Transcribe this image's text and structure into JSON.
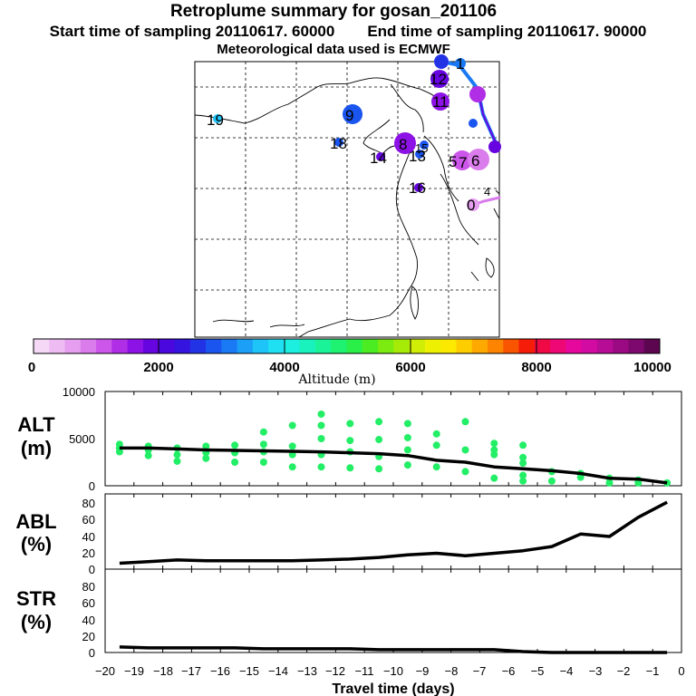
{
  "header": {
    "title": "Retroplume summary for gosan_201106",
    "start_label": "Start time of sampling 20110617. 60000",
    "end_label": "End time of sampling 20110617. 90000",
    "met_label": "Meteorological data used is ECMWF"
  },
  "map": {
    "labels": [
      "19",
      "9",
      "18",
      "14",
      "8",
      "13",
      "15",
      "16",
      "12",
      "11",
      "5",
      "6",
      "7",
      "4",
      "0",
      "1"
    ],
    "colors": {
      "land_line": "#000000",
      "grid": "#000000"
    }
  },
  "colorbar": {
    "title": "Altitude (m)",
    "tick_labels": [
      "0",
      "2000",
      "4000",
      "6000",
      "8000",
      "10000"
    ],
    "colors": [
      "#f4d8f6",
      "#eebcf2",
      "#e59ef0",
      "#da7cec",
      "#cc55ea",
      "#b02ee6",
      "#8d12e6",
      "#6605e0",
      "#4b08de",
      "#3514df",
      "#2233e6",
      "#1b55ef",
      "#1a79f4",
      "#1b9ff7",
      "#1ec3f8",
      "#1fe0f3",
      "#1ceee0",
      "#1af2be",
      "#1bf399",
      "#1ef270",
      "#2aef48",
      "#4cec22",
      "#7beb10",
      "#a6ea08",
      "#cfed05",
      "#eef002",
      "#fbe900",
      "#fdcd00",
      "#fda900",
      "#fc8400",
      "#f95500",
      "#f61c0a",
      "#f00a45",
      "#ee0876",
      "#e6089c",
      "#d20ba2",
      "#b60c96",
      "#9b0a83",
      "#7d086e",
      "#5c0650"
    ]
  },
  "chart_data": [
    {
      "type": "line",
      "panel": "ALT",
      "ylabel": "ALT (m)",
      "ylim": [
        0,
        10000
      ],
      "ytick_labels": [
        "10000",
        "5000",
        "0"
      ],
      "x": [
        -19.5,
        -18.5,
        -17.5,
        -16.5,
        -15.5,
        -14.5,
        -13.5,
        -12.5,
        -11.5,
        -10.5,
        -9.5,
        -8.5,
        -7.5,
        -6.5,
        -5.5,
        -4.5,
        -3.5,
        -2.5,
        -1.5,
        -0.5
      ],
      "values": [
        4000,
        4000,
        3900,
        3800,
        3750,
        3700,
        3650,
        3600,
        3500,
        3400,
        3200,
        2700,
        2500,
        2000,
        1800,
        1600,
        1300,
        800,
        700,
        300
      ],
      "scatter": [
        {
          "x": -19.5,
          "y": 4400
        },
        {
          "x": -19.5,
          "y": 4000
        },
        {
          "x": -19.5,
          "y": 3600
        },
        {
          "x": -18.5,
          "y": 4200
        },
        {
          "x": -18.5,
          "y": 3800
        },
        {
          "x": -18.5,
          "y": 3200
        },
        {
          "x": -17.5,
          "y": 4000
        },
        {
          "x": -17.5,
          "y": 3300
        },
        {
          "x": -17.5,
          "y": 2600
        },
        {
          "x": -16.5,
          "y": 4200
        },
        {
          "x": -16.5,
          "y": 3500
        },
        {
          "x": -16.5,
          "y": 2900
        },
        {
          "x": -15.5,
          "y": 4300
        },
        {
          "x": -15.5,
          "y": 3500
        },
        {
          "x": -15.5,
          "y": 2500
        },
        {
          "x": -14.5,
          "y": 5700
        },
        {
          "x": -14.5,
          "y": 4400
        },
        {
          "x": -14.5,
          "y": 3600
        },
        {
          "x": -14.5,
          "y": 2500
        },
        {
          "x": -13.5,
          "y": 6400
        },
        {
          "x": -13.5,
          "y": 4200
        },
        {
          "x": -13.5,
          "y": 3300
        },
        {
          "x": -13.5,
          "y": 2000
        },
        {
          "x": -12.5,
          "y": 7600
        },
        {
          "x": -12.5,
          "y": 6400
        },
        {
          "x": -12.5,
          "y": 5000
        },
        {
          "x": -12.5,
          "y": 3300
        },
        {
          "x": -12.5,
          "y": 2000
        },
        {
          "x": -11.5,
          "y": 6600
        },
        {
          "x": -11.5,
          "y": 4800
        },
        {
          "x": -11.5,
          "y": 3600
        },
        {
          "x": -11.5,
          "y": 1900
        },
        {
          "x": -10.5,
          "y": 6800
        },
        {
          "x": -10.5,
          "y": 4900
        },
        {
          "x": -10.5,
          "y": 3100
        },
        {
          "x": -10.5,
          "y": 1800
        },
        {
          "x": -9.5,
          "y": 6600
        },
        {
          "x": -9.5,
          "y": 5100
        },
        {
          "x": -9.5,
          "y": 3800
        },
        {
          "x": -9.5,
          "y": 2200
        },
        {
          "x": -8.5,
          "y": 5500
        },
        {
          "x": -8.5,
          "y": 4300
        },
        {
          "x": -8.5,
          "y": 2000
        },
        {
          "x": -7.5,
          "y": 6800
        },
        {
          "x": -7.5,
          "y": 3800
        },
        {
          "x": -7.5,
          "y": 1500
        },
        {
          "x": -6.5,
          "y": 4500
        },
        {
          "x": -6.5,
          "y": 3800
        },
        {
          "x": -6.5,
          "y": 3300
        },
        {
          "x": -6.5,
          "y": 800
        },
        {
          "x": -5.5,
          "y": 4300
        },
        {
          "x": -5.5,
          "y": 3000
        },
        {
          "x": -5.5,
          "y": 2400
        },
        {
          "x": -5.5,
          "y": 1100
        },
        {
          "x": -5.5,
          "y": 500
        },
        {
          "x": -4.5,
          "y": 1500
        },
        {
          "x": -4.5,
          "y": 500
        },
        {
          "x": -3.5,
          "y": 1300
        },
        {
          "x": -3.5,
          "y": 900
        },
        {
          "x": -2.5,
          "y": 800
        },
        {
          "x": -2.5,
          "y": 300
        },
        {
          "x": -1.5,
          "y": 600
        },
        {
          "x": -1.5,
          "y": 300
        },
        {
          "x": -0.5,
          "y": 300
        }
      ],
      "colors": {
        "line": "#000000",
        "points": "#22ee66"
      }
    },
    {
      "type": "line",
      "panel": "ABL",
      "ylabel": "ABL (%)",
      "ylim": [
        0,
        90
      ],
      "ytick_labels": [
        "80",
        "60",
        "40",
        "20",
        "0"
      ],
      "x": [
        -19.5,
        -18.5,
        -17.5,
        -16.5,
        -15.5,
        -14.5,
        -13.5,
        -12.5,
        -11.5,
        -10.5,
        -9.5,
        -8.5,
        -7.5,
        -6.5,
        -5.5,
        -4.5,
        -3.5,
        -2.5,
        -1.5,
        -0.5
      ],
      "values": [
        7,
        9,
        11,
        10,
        10,
        10,
        10,
        11,
        12,
        14,
        17,
        19,
        16,
        19,
        22,
        27,
        42,
        39,
        62,
        80
      ],
      "colors": {
        "line": "#000000"
      }
    },
    {
      "type": "line",
      "panel": "STR",
      "ylabel": "STR (%)",
      "ylim": [
        0,
        90
      ],
      "ytick_labels": [
        "80",
        "60",
        "40",
        "20",
        "0"
      ],
      "xlabel": "Travel time (days)",
      "xtick_labels": [
        "−20",
        "−19",
        "−18",
        "−17",
        "−16",
        "−15",
        "−14",
        "−13",
        "−12",
        "−11",
        "−10",
        "−9",
        "−8",
        "−7",
        "−6",
        "−5",
        "−4",
        "−3",
        "−2",
        "−1",
        "0"
      ],
      "x": [
        -19.5,
        -18.5,
        -17.5,
        -16.5,
        -15.5,
        -14.5,
        -13.5,
        -12.5,
        -11.5,
        -10.5,
        -9.5,
        -8.5,
        -7.5,
        -6.5,
        -5.5,
        -4.5,
        -3.5,
        -2.5,
        -1.5,
        -0.5
      ],
      "values": [
        6,
        5,
        5,
        5,
        5,
        4,
        4,
        4,
        4,
        3,
        3,
        3,
        3,
        3,
        1,
        0,
        0,
        0,
        0,
        0
      ],
      "colors": {
        "line": "#000000"
      }
    }
  ]
}
